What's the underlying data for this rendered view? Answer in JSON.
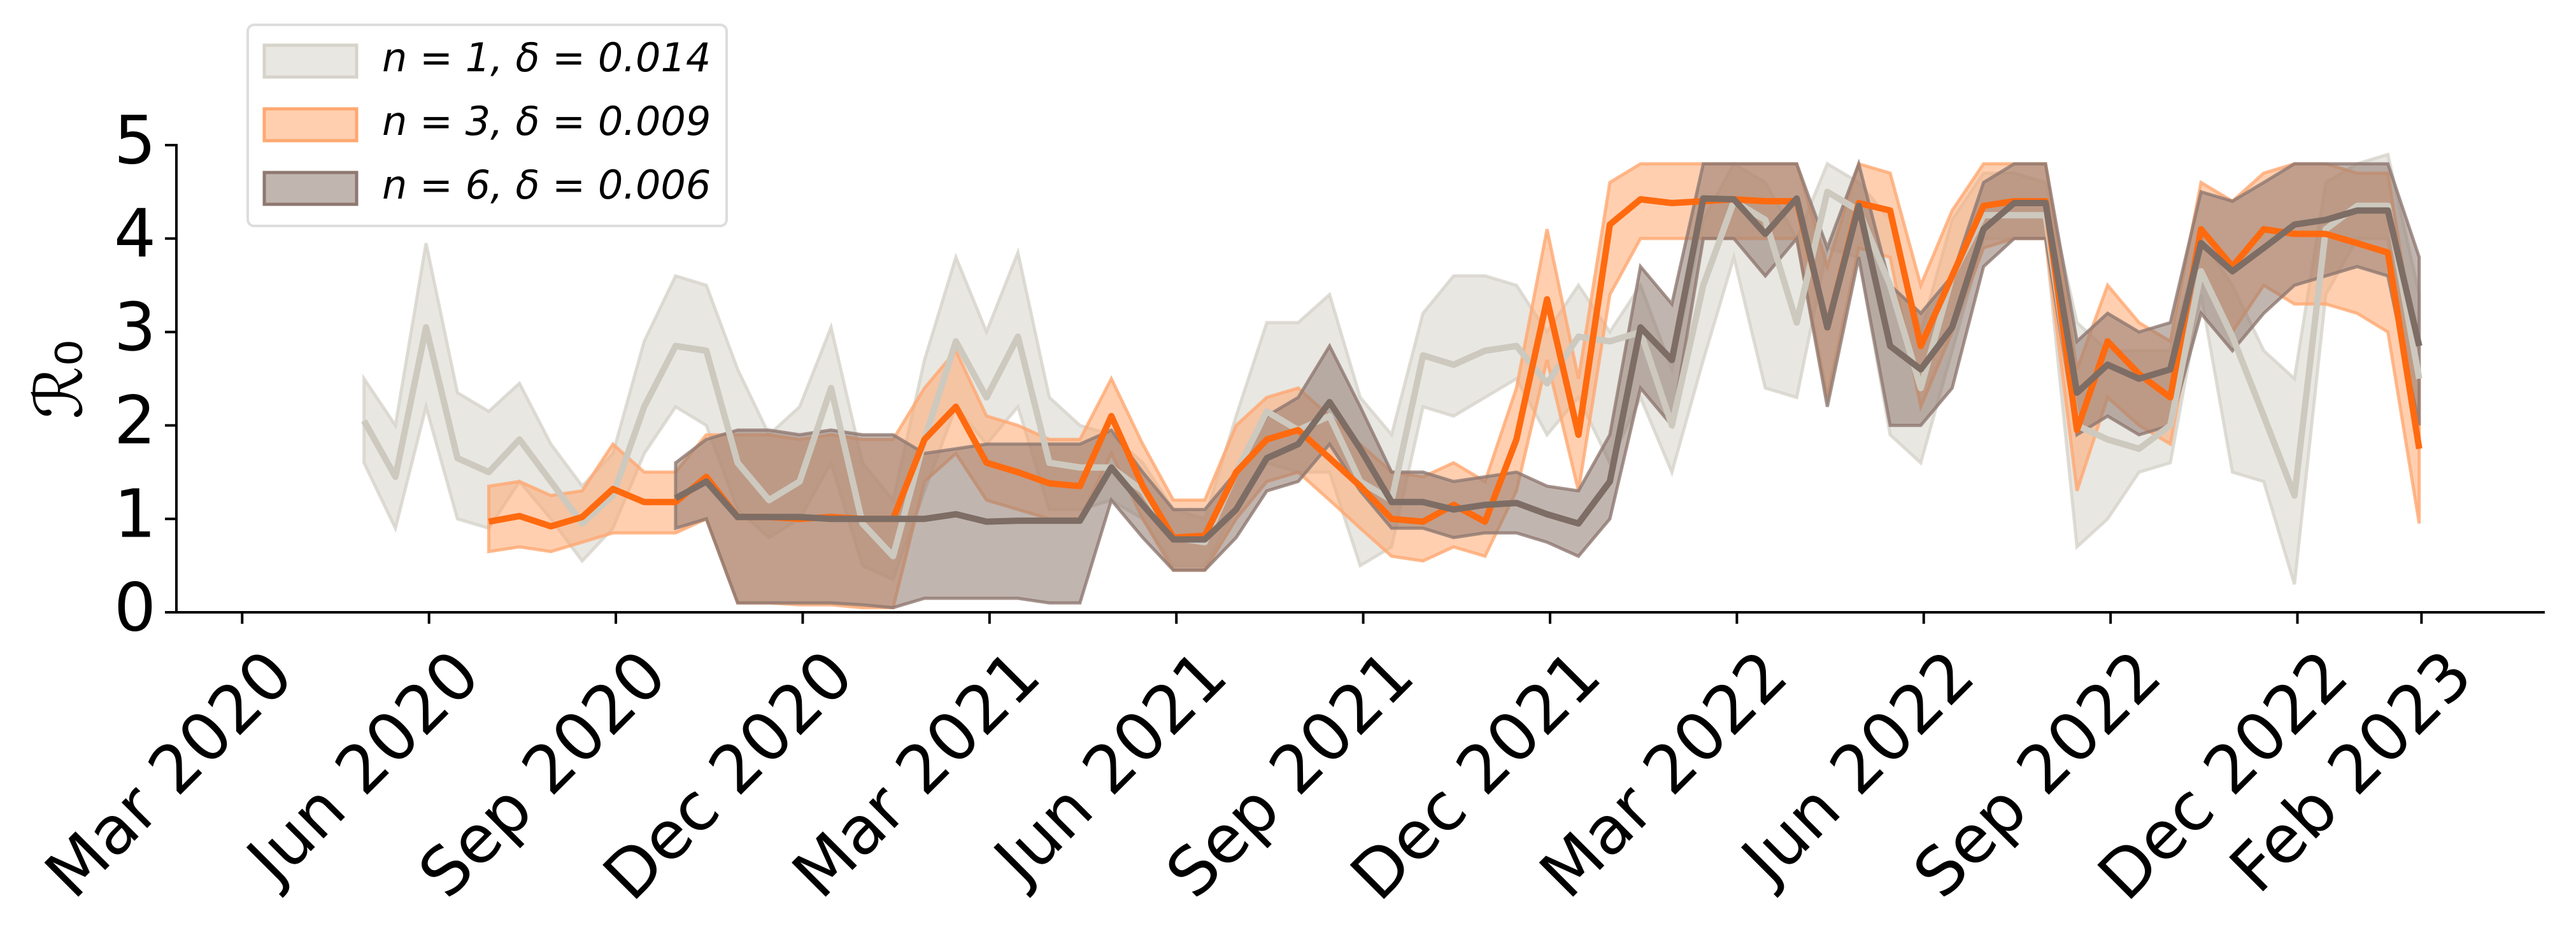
{
  "chart_data": {
    "type": "band-line",
    "ylabel": "ℛ₀",
    "legend": "upper left",
    "xlim": [
      2020.079,
      2023.248
    ],
    "ylim": [
      0,
      5
    ],
    "yticks": [
      0,
      1,
      2,
      3,
      4,
      5
    ],
    "xticks": [
      {
        "value": 2020.167,
        "label": "Mar 2020"
      },
      {
        "value": 2020.417,
        "label": "Jun 2020"
      },
      {
        "value": 2020.667,
        "label": "Sep 2020"
      },
      {
        "value": 2020.917,
        "label": "Dec 2020"
      },
      {
        "value": 2021.167,
        "label": "Mar 2021"
      },
      {
        "value": 2021.417,
        "label": "Jun 2021"
      },
      {
        "value": 2021.667,
        "label": "Sep 2021"
      },
      {
        "value": 2021.917,
        "label": "Dec 2021"
      },
      {
        "value": 2022.167,
        "label": "Mar 2022"
      },
      {
        "value": 2022.417,
        "label": "Jun 2022"
      },
      {
        "value": 2022.667,
        "label": "Sep 2022"
      },
      {
        "value": 2022.917,
        "label": "Dec 2022"
      },
      {
        "value": 2023.083,
        "label": "Feb 2023"
      }
    ],
    "x": [
      2020.33,
      2020.372,
      2020.413,
      2020.455,
      2020.497,
      2020.538,
      2020.58,
      2020.622,
      2020.663,
      2020.705,
      2020.747,
      2020.788,
      2020.83,
      2020.872,
      2020.913,
      2020.955,
      2020.997,
      2021.038,
      2021.08,
      2021.122,
      2021.163,
      2021.205,
      2021.247,
      2021.288,
      2021.33,
      2021.372,
      2021.413,
      2021.455,
      2021.497,
      2021.538,
      2021.58,
      2021.622,
      2021.663,
      2021.705,
      2021.747,
      2021.788,
      2021.83,
      2021.872,
      2021.913,
      2021.955,
      2021.997,
      2022.038,
      2022.08,
      2022.122,
      2022.163,
      2022.205,
      2022.247,
      2022.288,
      2022.33,
      2022.372,
      2022.413,
      2022.455,
      2022.497,
      2022.538,
      2022.58,
      2022.622,
      2022.663,
      2022.705,
      2022.747,
      2022.788,
      2022.83,
      2022.872,
      2022.913,
      2022.955,
      2022.997,
      2023.038,
      2023.08
    ],
    "series": [
      {
        "name": "n = 1, δ = 0.014",
        "color": "#cdc9bf",
        "band_color": "#d6d3ca",
        "values": [
          2.05,
          1.45,
          3.05,
          1.65,
          1.5,
          1.85,
          1.4,
          0.95,
          1.25,
          2.2,
          2.85,
          2.8,
          1.6,
          1.2,
          1.4,
          2.4,
          0.95,
          0.6,
          1.85,
          2.9,
          2.3,
          2.95,
          1.6,
          1.55,
          1.55,
          1.3,
          0.8,
          0.75,
          1.5,
          2.15,
          1.95,
          2.1,
          1.4,
          1.2,
          2.75,
          2.65,
          2.8,
          2.85,
          2.45,
          2.95,
          2.9,
          3.0,
          2.0,
          3.5,
          4.4,
          4.2,
          3.1,
          4.5,
          4.3,
          3.5,
          2.4,
          3.6,
          4.25,
          4.25,
          4.25,
          2.0,
          1.85,
          1.75,
          2.0,
          3.65,
          2.95,
          2.1,
          1.25,
          4.1,
          4.35,
          4.35,
          2.5
        ],
        "lower": [
          1.6,
          0.9,
          2.2,
          1.0,
          0.9,
          1.4,
          1.0,
          0.55,
          0.9,
          1.7,
          2.2,
          2.0,
          1.1,
          0.8,
          1.0,
          1.6,
          0.5,
          0.35,
          1.3,
          2.2,
          1.8,
          2.2,
          1.1,
          1.1,
          1.2,
          1.0,
          0.5,
          0.5,
          1.1,
          1.6,
          1.5,
          1.5,
          0.5,
          0.7,
          2.2,
          2.1,
          2.3,
          2.5,
          1.9,
          2.3,
          1.6,
          2.3,
          1.5,
          2.7,
          3.8,
          2.4,
          2.3,
          3.9,
          3.8,
          1.9,
          1.6,
          2.8,
          4.0,
          4.0,
          4.0,
          0.7,
          1.0,
          1.5,
          1.6,
          3.4,
          1.5,
          1.4,
          0.3,
          3.4,
          4.0,
          4.0,
          1.8
        ],
        "upper": [
          2.5,
          2.0,
          3.95,
          2.35,
          2.15,
          2.45,
          1.8,
          1.35,
          1.7,
          2.9,
          3.6,
          3.5,
          2.6,
          1.9,
          2.2,
          3.05,
          1.6,
          1.2,
          2.7,
          3.8,
          3.0,
          3.85,
          2.3,
          2.0,
          1.9,
          1.6,
          1.1,
          1.0,
          2.1,
          3.1,
          3.1,
          3.4,
          2.3,
          1.9,
          3.2,
          3.6,
          3.6,
          3.5,
          3.0,
          3.5,
          3.0,
          3.5,
          2.6,
          4.2,
          4.8,
          4.6,
          4.0,
          4.8,
          4.6,
          4.2,
          3.0,
          4.2,
          4.7,
          4.7,
          4.6,
          3.1,
          2.8,
          2.8,
          2.8,
          4.0,
          3.5,
          2.8,
          2.5,
          4.6,
          4.8,
          4.9,
          3.4
        ]
      },
      {
        "name": "n = 3, δ = 0.009",
        "color": "#ff6a0f",
        "band_color": "#ffa870",
        "values": [
          null,
          null,
          null,
          null,
          0.97,
          1.03,
          0.92,
          1.02,
          1.32,
          1.18,
          1.18,
          1.45,
          1.02,
          1.02,
          1.0,
          1.02,
          1.0,
          1.0,
          1.85,
          2.2,
          1.6,
          1.5,
          1.38,
          1.35,
          2.1,
          1.35,
          0.8,
          0.82,
          1.5,
          1.85,
          1.95,
          1.65,
          1.35,
          1.0,
          0.97,
          1.15,
          0.97,
          1.85,
          3.35,
          1.9,
          4.15,
          4.42,
          4.38,
          4.4,
          4.42,
          4.4,
          4.4,
          3.05,
          4.38,
          4.3,
          2.85,
          3.6,
          4.35,
          4.4,
          4.4,
          1.95,
          2.9,
          2.55,
          2.3,
          4.1,
          3.7,
          4.1,
          4.05,
          4.05,
          3.95,
          3.85,
          1.75
        ],
        "lower": [
          null,
          null,
          null,
          null,
          0.65,
          0.7,
          0.65,
          0.75,
          0.85,
          0.85,
          0.85,
          1.0,
          0.1,
          0.1,
          0.08,
          0.08,
          0.05,
          0.05,
          1.4,
          1.7,
          1.2,
          1.1,
          1.0,
          1.0,
          1.7,
          1.0,
          0.45,
          0.45,
          1.0,
          1.4,
          1.5,
          1.2,
          0.9,
          0.6,
          0.55,
          0.7,
          0.6,
          1.3,
          2.7,
          1.3,
          3.4,
          4.0,
          4.0,
          4.0,
          4.0,
          4.0,
          4.0,
          2.3,
          3.9,
          3.8,
          2.2,
          3.0,
          3.9,
          4.0,
          4.0,
          1.3,
          2.3,
          2.0,
          1.8,
          3.6,
          3.0,
          3.5,
          3.3,
          3.3,
          3.2,
          3.0,
          0.95
        ],
        "upper": [
          null,
          null,
          null,
          null,
          1.35,
          1.4,
          1.25,
          1.3,
          1.8,
          1.5,
          1.5,
          1.9,
          1.9,
          1.9,
          1.85,
          1.9,
          1.85,
          1.85,
          2.4,
          2.8,
          2.1,
          2.0,
          1.85,
          1.85,
          2.5,
          1.8,
          1.2,
          1.2,
          2.0,
          2.3,
          2.4,
          2.1,
          1.8,
          1.5,
          1.45,
          1.6,
          1.4,
          2.4,
          4.1,
          2.5,
          4.6,
          4.8,
          4.8,
          4.8,
          4.8,
          4.8,
          4.8,
          3.7,
          4.8,
          4.7,
          3.5,
          4.3,
          4.8,
          4.8,
          4.8,
          2.6,
          3.5,
          3.1,
          2.9,
          4.6,
          4.4,
          4.7,
          4.8,
          4.8,
          4.7,
          4.7,
          2.6
        ]
      },
      {
        "name": "n = 6, δ = 0.006",
        "color": "#7d6d65",
        "band_color": "#8e7870",
        "values": [
          null,
          null,
          null,
          null,
          null,
          null,
          null,
          null,
          null,
          null,
          1.22,
          1.4,
          1.02,
          1.02,
          1.02,
          1.0,
          1.0,
          1.0,
          1.0,
          1.05,
          0.97,
          0.98,
          0.98,
          0.98,
          1.55,
          1.15,
          0.78,
          0.78,
          1.1,
          1.65,
          1.8,
          2.25,
          1.75,
          1.18,
          1.18,
          1.1,
          1.15,
          1.17,
          1.05,
          0.95,
          1.4,
          3.05,
          2.7,
          4.43,
          4.42,
          4.05,
          4.43,
          3.05,
          4.35,
          2.85,
          2.6,
          3.05,
          4.1,
          4.38,
          4.38,
          2.35,
          2.65,
          2.5,
          2.6,
          3.95,
          3.65,
          3.9,
          4.15,
          4.2,
          4.3,
          4.3,
          2.85
        ],
        "lower": [
          null,
          null,
          null,
          null,
          null,
          null,
          null,
          null,
          null,
          null,
          0.9,
          1.0,
          0.1,
          0.1,
          0.1,
          0.1,
          0.08,
          0.05,
          0.15,
          0.15,
          0.15,
          0.15,
          0.1,
          0.1,
          1.2,
          0.8,
          0.45,
          0.45,
          0.8,
          1.3,
          1.4,
          1.8,
          1.3,
          0.9,
          0.9,
          0.8,
          0.85,
          0.85,
          0.75,
          0.6,
          1.0,
          2.4,
          2.0,
          4.0,
          4.0,
          3.6,
          4.0,
          2.2,
          3.8,
          2.0,
          2.0,
          2.4,
          3.7,
          4.0,
          4.0,
          1.9,
          2.1,
          1.9,
          2.0,
          3.2,
          2.8,
          3.2,
          3.5,
          3.6,
          3.7,
          3.6,
          2.0
        ],
        "upper": [
          null,
          null,
          null,
          null,
          null,
          null,
          null,
          null,
          null,
          null,
          1.6,
          1.85,
          1.95,
          1.95,
          1.9,
          1.95,
          1.9,
          1.9,
          1.7,
          1.75,
          1.8,
          1.8,
          1.8,
          1.8,
          1.95,
          1.5,
          1.1,
          1.1,
          1.5,
          2.1,
          2.3,
          2.85,
          2.2,
          1.5,
          1.5,
          1.4,
          1.45,
          1.5,
          1.35,
          1.3,
          1.9,
          3.7,
          3.3,
          4.8,
          4.8,
          4.8,
          4.8,
          3.9,
          4.8,
          3.5,
          3.2,
          3.6,
          4.6,
          4.8,
          4.8,
          2.9,
          3.2,
          3.0,
          3.1,
          4.5,
          4.4,
          4.6,
          4.8,
          4.8,
          4.8,
          4.8,
          3.8
        ]
      }
    ]
  }
}
